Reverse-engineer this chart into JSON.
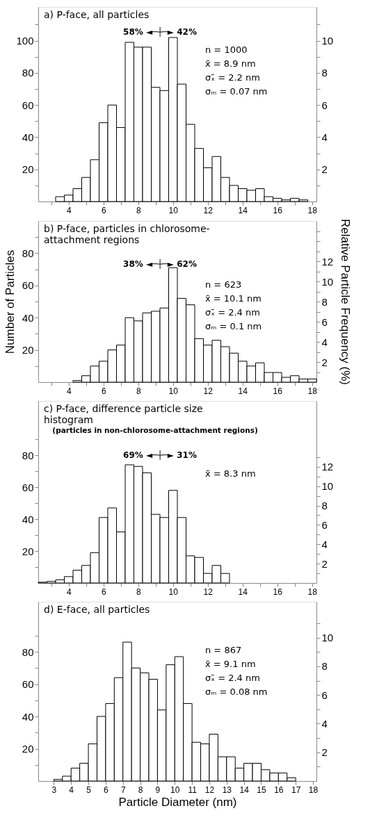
{
  "chart_data": [
    {
      "type": "histogram",
      "title": "a) P-face, all particles",
      "color": "#ffffff",
      "grid": false,
      "bins": [
        3.25,
        3.75,
        4.25,
        4.75,
        5.25,
        5.75,
        6.25,
        6.75,
        7.25,
        7.75,
        8.25,
        8.75,
        9.25,
        9.75,
        10.25,
        10.75,
        11.25,
        11.75,
        12.25,
        12.75,
        13.25,
        13.75,
        14.25,
        14.75,
        15.25,
        15.75,
        16.25,
        16.75,
        17.25,
        17.75
      ],
      "values": [
        3,
        4,
        8,
        15,
        26,
        49,
        60,
        46,
        99,
        96,
        96,
        71,
        69,
        102,
        73,
        48,
        33,
        21,
        28,
        15,
        10,
        8,
        7,
        8,
        3,
        2,
        1,
        2,
        1
      ],
      "xlim": [
        2.25,
        18.25
      ],
      "xticks": [
        {
          "value": 3,
          "label": null
        },
        4,
        {
          "value": 5,
          "label": null
        },
        6,
        {
          "value": 7,
          "label": null
        },
        8,
        {
          "value": 9,
          "label": null
        },
        10,
        {
          "value": 11,
          "label": null
        },
        12,
        {
          "value": 13,
          "label": null
        },
        14,
        {
          "value": 15,
          "label": null
        },
        16,
        {
          "value": 17,
          "label": null
        },
        18
      ],
      "ylim": [
        0,
        121
      ],
      "yticks": [
        {
          "value": 10,
          "label": null
        },
        20,
        {
          "value": 30,
          "label": null
        },
        40,
        {
          "value": 50,
          "label": null
        },
        60,
        {
          "value": 70,
          "label": null
        },
        80,
        {
          "value": 90,
          "label": null
        },
        100,
        {
          "value": 110,
          "label": null
        }
      ],
      "y2lim": [
        0,
        12.1
      ],
      "y2ticks": [
        {
          "value": 1,
          "label": null
        },
        2,
        {
          "value": 3,
          "label": null
        },
        4,
        {
          "value": 5,
          "label": null
        },
        6,
        {
          "value": 7,
          "label": null
        },
        8,
        {
          "value": 9,
          "label": null
        },
        10,
        {
          "value": 11,
          "label": null
        }
      ],
      "annotations": [
        "58% ◄─┼─► 42%",
        "n = 1000",
        "x̄ = 8.9 nm",
        "σₓ̄ = 2.2 nm",
        "σₘ = 0.07 nm"
      ]
    },
    {
      "type": "histogram",
      "title": "b) P-face, particles in chlorosome-attachment regions",
      "color": "#ffffff",
      "grid": false,
      "ylabel": "Number of Particles",
      "y2label": "Relative Particle Frequency (%)",
      "bins": [
        4.25,
        4.75,
        5.25,
        5.75,
        6.25,
        6.75,
        7.25,
        7.75,
        8.25,
        8.75,
        9.25,
        9.75,
        10.25,
        10.75,
        11.25,
        11.75,
        12.25,
        12.75,
        13.25,
        13.75,
        14.25,
        14.75,
        15.25,
        15.75,
        16.25,
        16.75,
        17.25,
        17.75,
        18.25
      ],
      "values": [
        1,
        4,
        10,
        13,
        20,
        23,
        40,
        38,
        43,
        44,
        46,
        71,
        52,
        48,
        27,
        23,
        26,
        22,
        18,
        13,
        10,
        12,
        6,
        6,
        3,
        4,
        2,
        2
      ],
      "xlim": [
        2.25,
        18.25
      ],
      "xticks": [
        {
          "value": 3,
          "label": null
        },
        4,
        {
          "value": 5,
          "label": null
        },
        6,
        {
          "value": 7,
          "label": null
        },
        8,
        {
          "value": 9,
          "label": null
        },
        10,
        {
          "value": 11,
          "label": null
        },
        12,
        {
          "value": 13,
          "label": null
        },
        14,
        {
          "value": 15,
          "label": null
        },
        16,
        {
          "value": 17,
          "label": null
        },
        18
      ],
      "ylim": [
        0,
        100
      ],
      "yticks": [
        {
          "value": 10,
          "label": null
        },
        20,
        {
          "value": 30,
          "label": null
        },
        40,
        {
          "value": 50,
          "label": null
        },
        60,
        {
          "value": 70,
          "label": null
        },
        80,
        {
          "value": 90,
          "label": null
        }
      ],
      "y2lim": [
        0,
        16
      ],
      "y2ticks": [
        {
          "value": 1,
          "label": null
        },
        2,
        {
          "value": 3,
          "label": null
        },
        4,
        {
          "value": 5,
          "label": null
        },
        6,
        {
          "value": 7,
          "label": null
        },
        8,
        {
          "value": 9,
          "label": null
        },
        10,
        {
          "value": 11,
          "label": null
        },
        12,
        {
          "value": 13,
          "label": null
        },
        {
          "value": 14,
          "label": null
        },
        {
          "value": 15,
          "label": null
        }
      ],
      "annotations": [
        "38% ◄─┼─► 62%",
        "n = 623",
        "x̄ = 10.1 nm",
        "σₓ̄ = 2.4 nm",
        "σₘ = 0.1 nm"
      ]
    },
    {
      "type": "histogram",
      "title": "c) P-face, difference particle size histogram",
      "subtitle": "(particles in non-chlorosome-attachment regions)",
      "color": "#ffffff",
      "grid": false,
      "bins": [
        2.25,
        2.75,
        3.25,
        3.75,
        4.25,
        4.75,
        5.25,
        5.75,
        6.25,
        6.75,
        7.25,
        7.75,
        8.25,
        8.75,
        9.25,
        9.75,
        10.25,
        10.75,
        11.25,
        11.75,
        12.25,
        12.75,
        13.25
      ],
      "values": [
        0.5,
        1,
        2,
        4,
        8,
        11,
        19,
        41,
        47,
        32,
        74,
        73,
        69,
        43,
        41,
        58,
        41,
        17,
        16,
        6,
        11,
        6
      ],
      "xlim": [
        2.25,
        18.25
      ],
      "xticks": [
        {
          "value": 3,
          "label": null
        },
        4,
        {
          "value": 5,
          "label": null
        },
        6,
        {
          "value": 7,
          "label": null
        },
        8,
        {
          "value": 9,
          "label": null
        },
        10,
        {
          "value": 11,
          "label": null
        },
        12,
        {
          "value": 13,
          "label": null
        },
        14,
        {
          "value": 15,
          "label": null
        },
        16,
        {
          "value": 17,
          "label": null
        },
        18
      ],
      "ylim": [
        0,
        114
      ],
      "yticks": [
        {
          "value": 10,
          "label": null
        },
        20,
        {
          "value": 30,
          "label": null
        },
        40,
        {
          "value": 50,
          "label": null
        },
        60,
        {
          "value": 70,
          "label": null
        },
        80,
        {
          "value": 90,
          "label": null
        }
      ],
      "y2lim": [
        0,
        18.8
      ],
      "y2ticks": [
        {
          "value": 1,
          "label": null
        },
        2,
        {
          "value": 3,
          "label": null
        },
        4,
        {
          "value": 5,
          "label": null
        },
        6,
        {
          "value": 7,
          "label": null
        },
        8,
        {
          "value": 9,
          "label": null
        },
        10,
        {
          "value": 11,
          "label": null
        },
        12,
        {
          "value": 13,
          "label": null
        }
      ],
      "annotations": [
        "69% ◄─┼─► 31%",
        "x̄ = 8.3 nm"
      ]
    },
    {
      "type": "histogram",
      "title": "d) E-face, all particles",
      "color": "#ffffff",
      "grid": false,
      "xlabel": "Particle Diameter (nm)",
      "bins": [
        3,
        3.5,
        4,
        4.5,
        5,
        5.5,
        6,
        6.5,
        7,
        7.5,
        8,
        8.5,
        9,
        9.5,
        10,
        10.5,
        11,
        11.5,
        12,
        12.5,
        13,
        13.5,
        14,
        14.5,
        15,
        15.5,
        16,
        16.5,
        17
      ],
      "values": [
        1,
        3,
        8,
        11,
        23,
        40,
        48,
        64,
        86,
        70,
        67,
        63,
        44,
        72,
        77,
        48,
        24,
        23,
        29,
        15,
        15,
        8,
        11,
        11,
        7,
        5,
        5,
        2
      ],
      "xlim": [
        2.1,
        18.2
      ],
      "xticks": [
        3,
        4,
        5,
        6,
        7,
        8,
        9,
        10,
        11,
        12,
        13,
        14,
        15,
        16,
        17,
        18
      ],
      "ylim": [
        0,
        111
      ],
      "yticks": [
        {
          "value": 10,
          "label": null
        },
        20,
        {
          "value": 30,
          "label": null
        },
        40,
        {
          "value": 50,
          "label": null
        },
        60,
        {
          "value": 70,
          "label": null
        },
        80,
        {
          "value": 90,
          "label": null
        }
      ],
      "y2lim": [
        0,
        12.5
      ],
      "y2ticks": [
        {
          "value": 1,
          "label": null
        },
        2,
        {
          "value": 3,
          "label": null
        },
        4,
        {
          "value": 5,
          "label": null
        },
        6,
        {
          "value": 7,
          "label": null
        },
        8,
        {
          "value": 9,
          "label": null
        },
        10,
        {
          "value": 11,
          "label": null
        }
      ],
      "annotations": [
        "n = 867",
        "x̄ = 9.1 nm",
        "σₓ̄ = 2.4 nm",
        "σₘ = 0.08 nm"
      ]
    }
  ]
}
